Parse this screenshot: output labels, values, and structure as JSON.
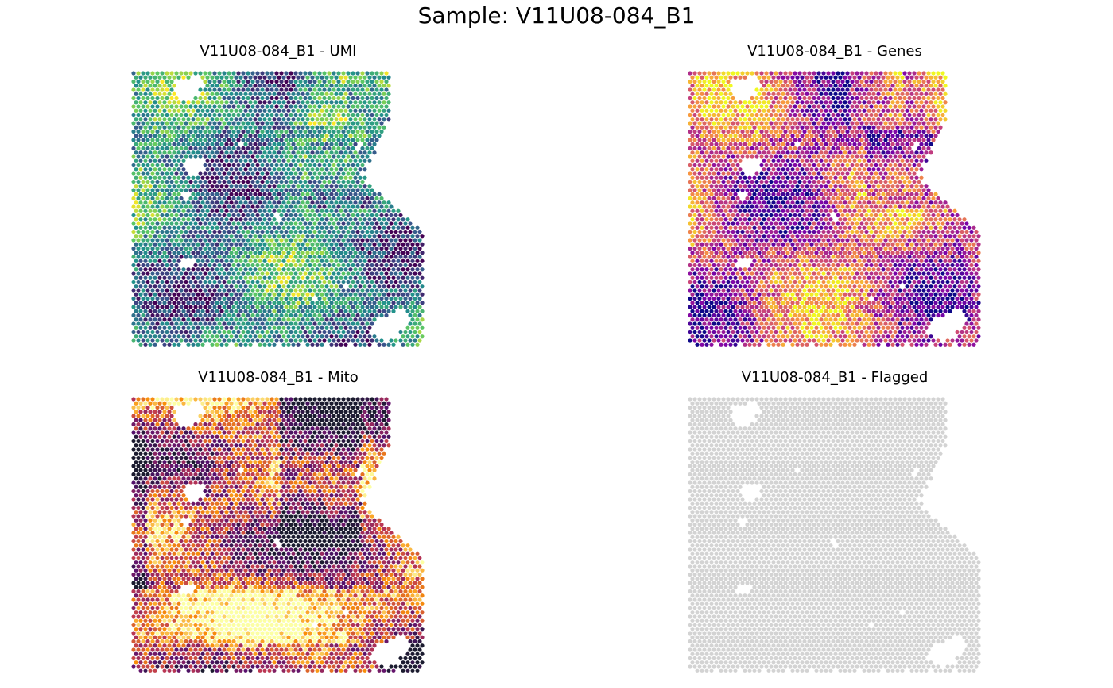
{
  "figure": {
    "title": "Sample: V11U08-084_B1"
  },
  "chart_data": [
    {
      "type": "scatter",
      "title": "V11U08-084_B1 - UMI",
      "metric": "UMI",
      "colormap": "viridis",
      "colors": [
        "#440154",
        "#3b528b",
        "#21918c",
        "#5ec962",
        "#fde725"
      ],
      "grid": false,
      "axes": "off",
      "legend": "none"
    },
    {
      "type": "scatter",
      "title": "V11U08-084_B1 - Genes",
      "metric": "Genes",
      "colormap": "plasma",
      "colors": [
        "#0d0887",
        "#7e03a8",
        "#cc4778",
        "#f89540",
        "#f0f921"
      ],
      "grid": false,
      "axes": "off",
      "legend": "none"
    },
    {
      "type": "scatter",
      "title": "V11U08-084_B1 - Mito",
      "metric": "Mito",
      "colormap": "inferno",
      "colors": [
        "#1b1b2f",
        "#57106e",
        "#bc3754",
        "#f98e09",
        "#fcffa4"
      ],
      "grid": false,
      "axes": "off",
      "legend": "none"
    },
    {
      "type": "scatter",
      "title": "V11U08-084_B1 - Flagged",
      "metric": "Flagged",
      "colormap": "single",
      "colors": [
        "#d3d3d3"
      ],
      "grid": false,
      "axes": "off",
      "legend": "none"
    }
  ]
}
